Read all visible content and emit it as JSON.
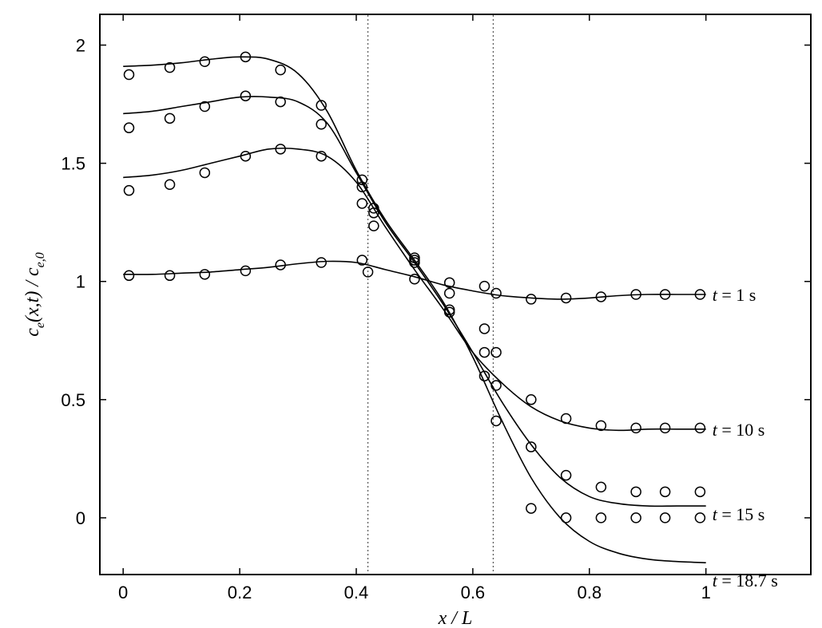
{
  "chart_data": {
    "type": "line",
    "xlabel": "x / L",
    "ylabel": "c_e(x,t) / c_e,0",
    "ylabel_parts": {
      "a": "c",
      "b": "e",
      "c": "(x,t) / c",
      "d": "e,0"
    },
    "xlim": [
      -0.04,
      1.18
    ],
    "ylim": [
      -0.24,
      2.13
    ],
    "xticks": [
      0,
      0.2,
      0.4,
      0.6,
      0.8,
      1
    ],
    "xtick_labels": [
      "0",
      "0.2",
      "0.4",
      "0.6",
      "0.8",
      "1"
    ],
    "yticks": [
      0,
      0.5,
      1,
      1.5,
      2
    ],
    "ytick_labels": [
      "0",
      "0.5",
      "1",
      "1.5",
      "2"
    ],
    "grid": false,
    "vertical_lines": [
      0.42,
      0.635
    ],
    "series": [
      {
        "name": "t = 1 s",
        "label_parts": {
          "var": "t",
          "rest": " = 1 s"
        },
        "model_curve": {
          "x": [
            0,
            0.05,
            0.1,
            0.15,
            0.2,
            0.25,
            0.3,
            0.35,
            0.4,
            0.45,
            0.5,
            0.55,
            0.6,
            0.65,
            0.7,
            0.75,
            0.8,
            0.85,
            0.9,
            0.95,
            1
          ],
          "y": [
            1.03,
            1.03,
            1.035,
            1.04,
            1.05,
            1.06,
            1.075,
            1.085,
            1.08,
            1.05,
            1.02,
            0.985,
            0.96,
            0.94,
            0.93,
            0.925,
            0.93,
            0.94,
            0.945,
            0.945,
            0.945
          ]
        },
        "measured_points": {
          "x": [
            0.01,
            0.08,
            0.14,
            0.21,
            0.27,
            0.34,
            0.41,
            0.42,
            0.5,
            0.56,
            0.62,
            0.64,
            0.7,
            0.76,
            0.82,
            0.88,
            0.93,
            0.99
          ],
          "y": [
            1.025,
            1.025,
            1.03,
            1.045,
            1.07,
            1.08,
            1.09,
            1.04,
            1.01,
            0.995,
            0.98,
            0.95,
            0.925,
            0.93,
            0.935,
            0.945,
            0.945,
            0.945
          ]
        }
      },
      {
        "name": "t = 10 s",
        "label_parts": {
          "var": "t",
          "rest": " = 10 s"
        },
        "model_curve": {
          "x": [
            0,
            0.05,
            0.1,
            0.15,
            0.2,
            0.25,
            0.3,
            0.35,
            0.4,
            0.45,
            0.5,
            0.55,
            0.6,
            0.65,
            0.7,
            0.75,
            0.8,
            0.85,
            0.9,
            0.95,
            1
          ],
          "y": [
            1.44,
            1.45,
            1.47,
            1.5,
            1.53,
            1.56,
            1.56,
            1.53,
            1.42,
            1.23,
            1.05,
            0.88,
            0.7,
            0.57,
            0.47,
            0.41,
            0.38,
            0.37,
            0.375,
            0.375,
            0.375
          ]
        },
        "measured_points": {
          "x": [
            0.01,
            0.08,
            0.14,
            0.21,
            0.27,
            0.34,
            0.41,
            0.43,
            0.5,
            0.56,
            0.62,
            0.64,
            0.7,
            0.76,
            0.82,
            0.88,
            0.93,
            0.99
          ],
          "y": [
            1.385,
            1.41,
            1.46,
            1.53,
            1.56,
            1.53,
            1.4,
            1.29,
            1.09,
            0.95,
            0.8,
            0.7,
            0.5,
            0.42,
            0.39,
            0.38,
            0.38,
            0.38
          ]
        }
      },
      {
        "name": "t = 15 s",
        "label_parts": {
          "var": "t",
          "rest": " = 15 s"
        },
        "model_curve": {
          "x": [
            0,
            0.05,
            0.1,
            0.15,
            0.2,
            0.25,
            0.3,
            0.35,
            0.4,
            0.45,
            0.5,
            0.55,
            0.6,
            0.65,
            0.7,
            0.75,
            0.8,
            0.85,
            0.9,
            0.95,
            1
          ],
          "y": [
            1.71,
            1.72,
            1.74,
            1.76,
            1.78,
            1.78,
            1.76,
            1.67,
            1.46,
            1.25,
            1.08,
            0.9,
            0.7,
            0.49,
            0.31,
            0.17,
            0.09,
            0.06,
            0.05,
            0.05,
            0.05
          ]
        },
        "measured_points": {
          "x": [
            0.01,
            0.08,
            0.14,
            0.21,
            0.27,
            0.34,
            0.41,
            0.43,
            0.5,
            0.56,
            0.62,
            0.64,
            0.7,
            0.76,
            0.82,
            0.88,
            0.93,
            0.99
          ],
          "y": [
            1.65,
            1.69,
            1.74,
            1.785,
            1.76,
            1.665,
            1.43,
            1.31,
            1.08,
            0.88,
            0.7,
            0.56,
            0.3,
            0.18,
            0.13,
            0.11,
            0.11,
            0.11
          ]
        }
      },
      {
        "name": "t = 18.7 s",
        "label_parts": {
          "var": "t",
          "rest": " = 18.7 s"
        },
        "model_curve": {
          "x": [
            0,
            0.05,
            0.1,
            0.15,
            0.2,
            0.25,
            0.3,
            0.35,
            0.4,
            0.45,
            0.5,
            0.55,
            0.6,
            0.65,
            0.7,
            0.75,
            0.8,
            0.85,
            0.9,
            0.95,
            1
          ],
          "y": [
            1.91,
            1.915,
            1.925,
            1.94,
            1.95,
            1.94,
            1.88,
            1.72,
            1.47,
            1.26,
            1.09,
            0.91,
            0.68,
            0.41,
            0.17,
            0.0,
            -0.1,
            -0.15,
            -0.175,
            -0.185,
            -0.19
          ]
        },
        "measured_points": {
          "x": [
            0.01,
            0.08,
            0.14,
            0.21,
            0.27,
            0.34,
            0.41,
            0.43,
            0.5,
            0.56,
            0.62,
            0.64,
            0.7,
            0.76,
            0.82,
            0.88,
            0.93,
            0.99
          ],
          "y": [
            1.875,
            1.905,
            1.93,
            1.95,
            1.895,
            1.745,
            1.33,
            1.235,
            1.1,
            0.87,
            0.6,
            0.41,
            0.04,
            0.0,
            0.0,
            0.0,
            0.0,
            0.0
          ]
        }
      }
    ]
  }
}
